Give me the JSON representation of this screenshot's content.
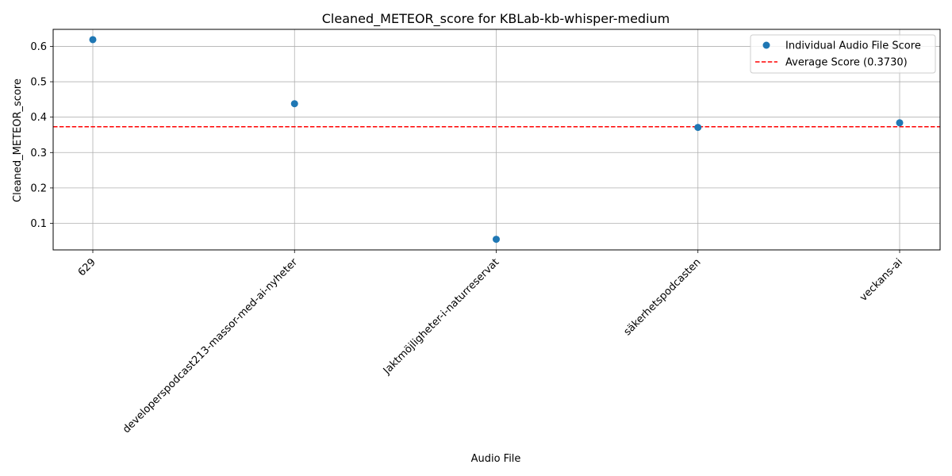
{
  "chart_data": {
    "type": "scatter",
    "title": "Cleaned_METEOR_score for KBLab-kb-whisper-medium",
    "xlabel": "Audio File",
    "ylabel": "Cleaned_METEOR_score",
    "categories": [
      "629",
      "developerspodcast213-massor-med-ai-nyheter",
      "Jaktmöjligheter-i-naturreservat",
      "säkerhetspodcasten",
      "veckans-ai"
    ],
    "series": [
      {
        "name": "Individual Audio File Score",
        "values": [
          0.619,
          0.438,
          0.055,
          0.371,
          0.384
        ],
        "color": "#1f77b4"
      }
    ],
    "average": {
      "name": "Average Score (0.3730)",
      "value": 0.373,
      "color": "#ff0000",
      "style": "dashed"
    },
    "ylim": [
      0.025,
      0.648
    ],
    "yticks": [
      0.1,
      0.2,
      0.3,
      0.4,
      0.5,
      0.6
    ],
    "ytick_labels": [
      "0.1",
      "0.2",
      "0.3",
      "0.4",
      "0.5",
      "0.6"
    ],
    "grid": true,
    "legend_position": "top-right"
  }
}
